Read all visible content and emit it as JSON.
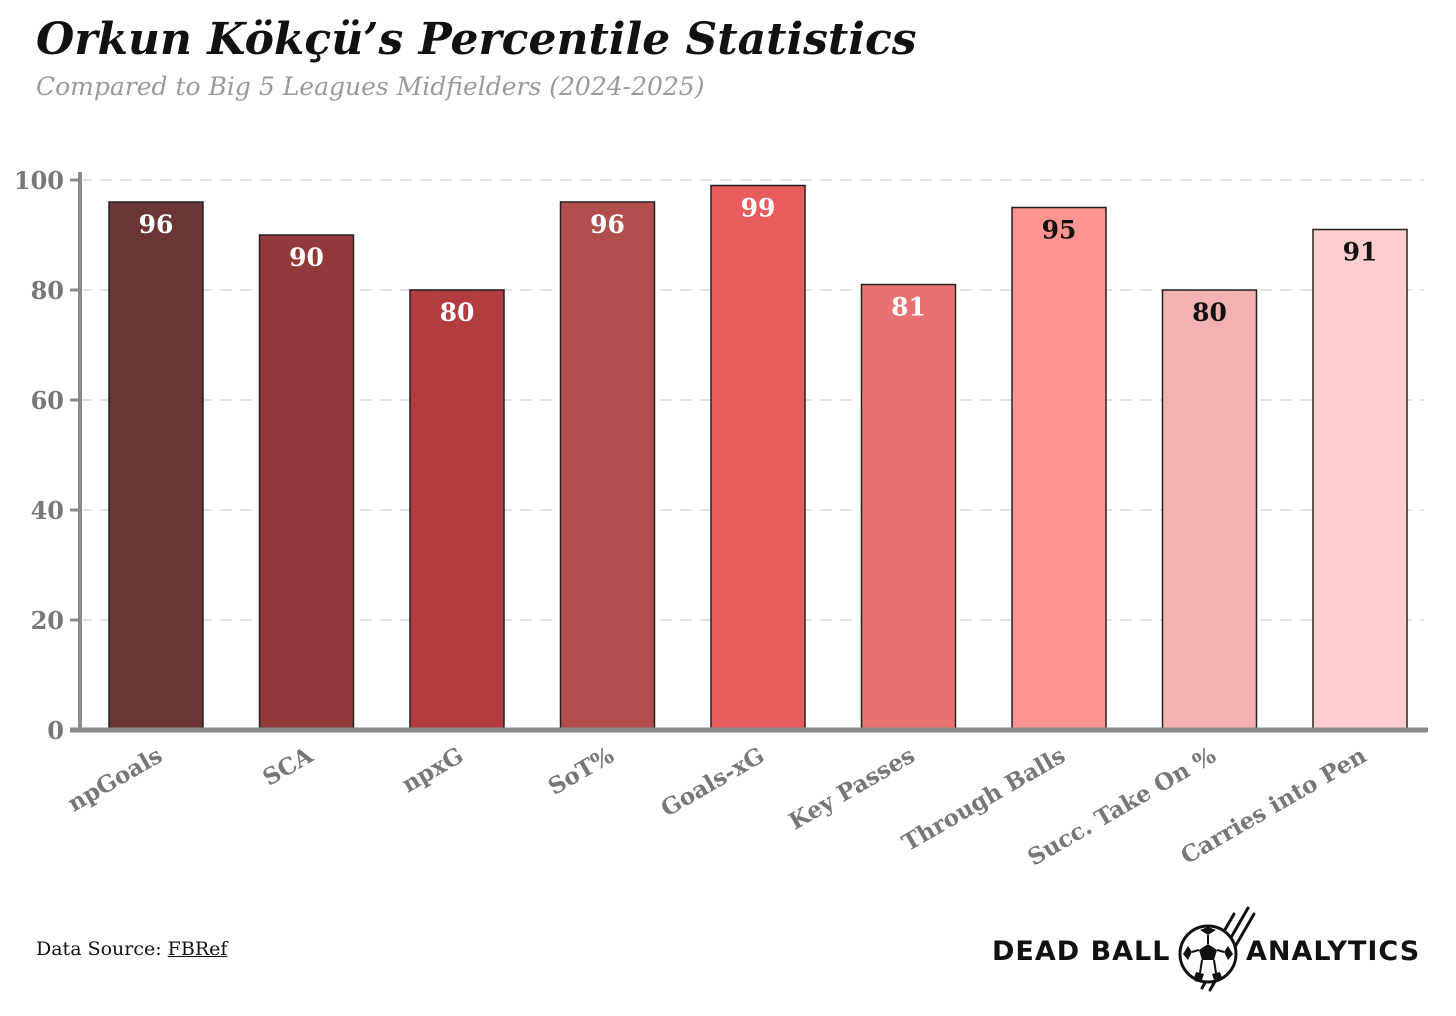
{
  "title": "Orkun Kökçü’s Percentile Statistics",
  "subtitle": "Compared to Big 5 Leagues Midfielders (2024-2025)",
  "footer": {
    "source_label": "Data Source: ",
    "source_link": "FBRef",
    "brand_left": "DEAD BALL",
    "brand_right": "ANALYTICS",
    "brand_icon": "soccer-ball-icon"
  },
  "chart_data": {
    "type": "bar",
    "title": "Orkun Kökçü’s Percentile Statistics",
    "subtitle": "Compared to Big 5 Leagues Midfielders (2024-2025)",
    "xlabel": "",
    "ylabel": "",
    "categories": [
      "npGoals",
      "SCA",
      "npxG",
      "SoT%",
      "Goals-xG",
      "Key Passes",
      "Through Balls",
      "Succ. Take On %",
      "Carries into Pen"
    ],
    "values": [
      96,
      90,
      80,
      96,
      99,
      81,
      95,
      80,
      91
    ],
    "colors": [
      "#6b3535",
      "#923a3a",
      "#b23c40",
      "#b24d4e",
      "#e85c5c",
      "#e87272",
      "#fe9390",
      "#f4b1b1",
      "#ffcdcd"
    ],
    "label_colors": [
      "#ffffff",
      "#ffffff",
      "#ffffff",
      "#ffffff",
      "#ffffff",
      "#ffffff",
      "#111111",
      "#111111",
      "#111111"
    ],
    "ylim": [
      0,
      100
    ],
    "yticks": [
      0,
      20,
      40,
      60,
      80,
      100
    ],
    "grid": "horizontal-dashed",
    "legend": "none"
  }
}
